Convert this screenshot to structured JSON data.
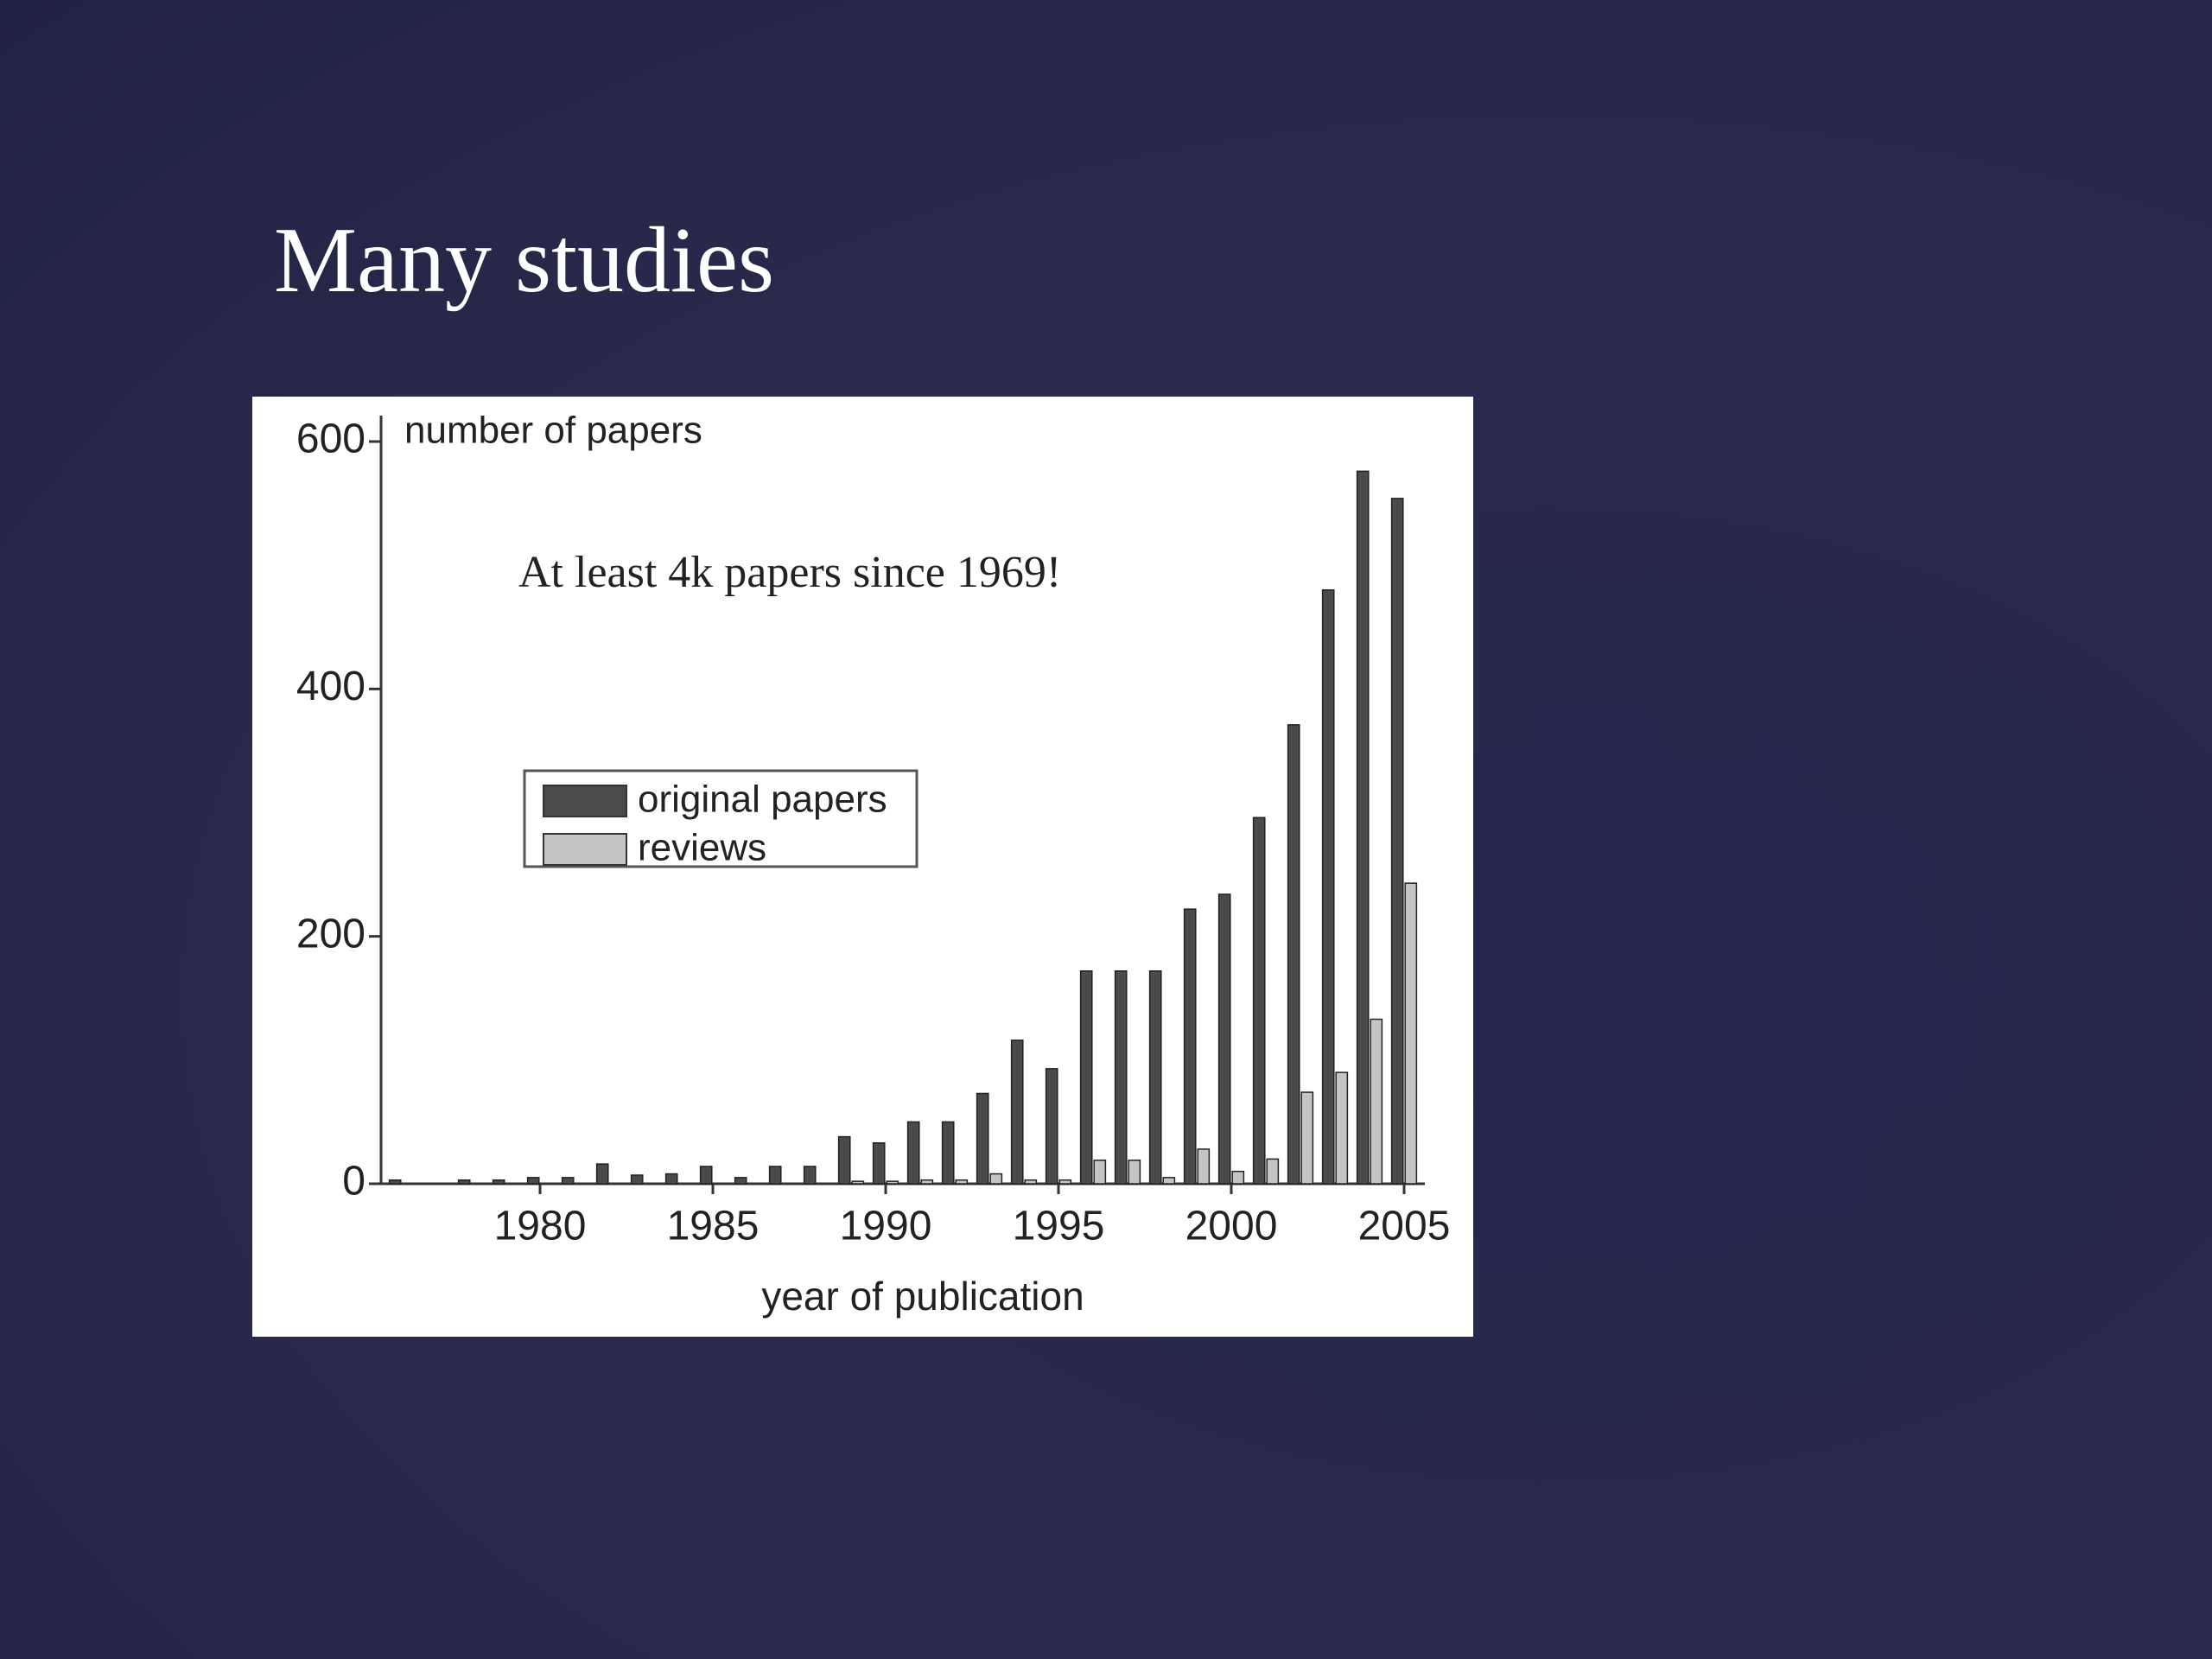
{
  "slide_title": "Many studies",
  "chart_data": {
    "type": "bar",
    "annotation": "At least 4k  papers since 1969!",
    "ylabel": "number of papers",
    "xlabel": "year of publication",
    "x": [
      1976,
      1977,
      1978,
      1979,
      1980,
      1981,
      1982,
      1983,
      1984,
      1985,
      1986,
      1987,
      1988,
      1989,
      1990,
      1991,
      1992,
      1993,
      1994,
      1995,
      1996,
      1997,
      1998,
      1999,
      2000,
      2001,
      2002,
      2003,
      2004,
      2005
    ],
    "series": [
      {
        "name": "original papers",
        "color": "#4a4a4a",
        "values": [
          3,
          0,
          3,
          3,
          5,
          5,
          16,
          7,
          8,
          14,
          5,
          14,
          14,
          38,
          33,
          50,
          50,
          73,
          116,
          93,
          172,
          172,
          172,
          222,
          234,
          296,
          371,
          480,
          576,
          554
        ]
      },
      {
        "name": "reviews",
        "color": "#c4c4c4",
        "values": [
          0,
          0,
          0,
          0,
          0,
          0,
          0,
          0,
          0,
          0,
          0,
          0,
          0,
          2,
          2,
          3,
          3,
          8,
          3,
          3,
          19,
          19,
          5,
          28,
          10,
          20,
          74,
          90,
          133,
          243
        ]
      }
    ],
    "xlim": [
      1975.4,
      2005.6
    ],
    "xticks": [
      1980,
      1985,
      1990,
      1995,
      2000,
      2005
    ],
    "ylim": [
      0,
      600
    ],
    "yticks": [
      0,
      200,
      400,
      600
    ]
  }
}
